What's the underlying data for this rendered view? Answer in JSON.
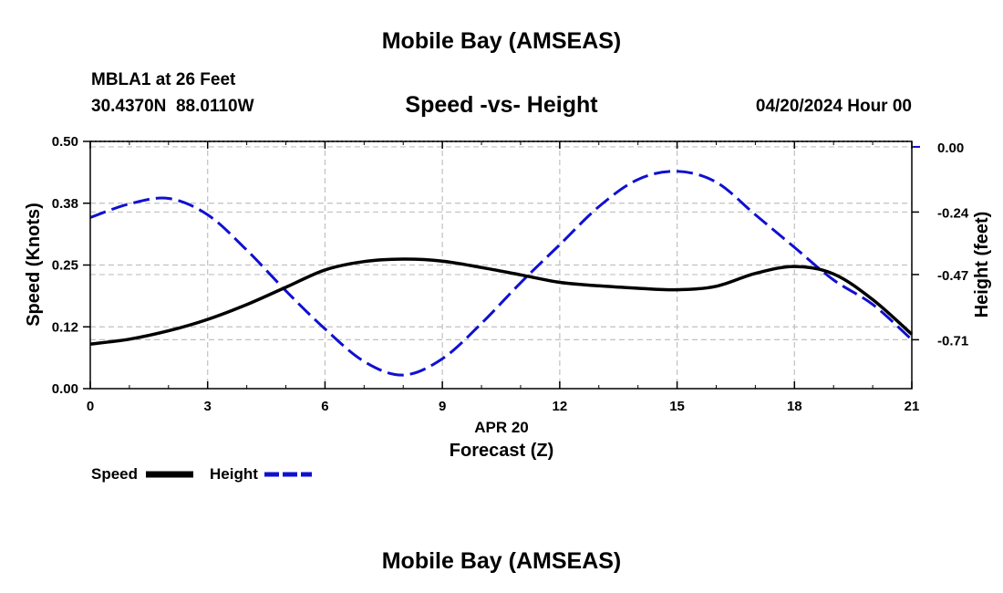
{
  "header": {
    "top_title": "Mobile Bay (AMSEAS)",
    "station_line": "MBLA1 at 26 Feet",
    "coords_line": "30.4370N  88.0110W",
    "timestamp": "04/20/2024 Hour 00"
  },
  "footer": {
    "bottom_title": "Mobile Bay (AMSEAS)"
  },
  "legend": {
    "speed_label": "Speed",
    "height_label": "Height"
  },
  "colors": {
    "speed": "#000000",
    "height": "#1010d0",
    "grid": "#c0c0c0"
  },
  "chart_data": {
    "type": "line",
    "title": "Speed -vs- Height",
    "xlabel": "Forecast (Z)",
    "xlabel_date": "APR 20",
    "ylabel": "Speed (Knots)",
    "y2label": "Height (feet)",
    "xlim": [
      0,
      21
    ],
    "ylim": [
      0,
      0.5
    ],
    "y2lim": [
      -0.89,
      0.02
    ],
    "xticks": [
      0,
      3,
      6,
      9,
      12,
      15,
      18,
      21
    ],
    "xtick_labels": [
      "0",
      "3",
      "6",
      "9",
      "12",
      "15",
      "18",
      "21"
    ],
    "yticks": [
      0.0,
      0.125,
      0.25,
      0.375,
      0.5
    ],
    "ytick_labels": [
      "0.00",
      "0.12",
      "0.25",
      "0.38",
      "0.50"
    ],
    "y2ticks": [
      0.0,
      -0.24,
      -0.47,
      -0.71
    ],
    "y2tick_labels": [
      "0.00",
      "-0.24",
      "-0.47",
      "-0.71"
    ],
    "grid": true,
    "legend_position": "bottom-left",
    "series": [
      {
        "name": "Speed",
        "axis": "left",
        "style": "solid",
        "x": [
          0,
          1,
          2,
          3,
          4,
          5,
          6,
          7,
          8,
          9,
          10,
          11,
          12,
          13,
          14,
          15,
          16,
          17,
          18,
          19,
          20,
          21
        ],
        "values": [
          0.09,
          0.1,
          0.117,
          0.14,
          0.17,
          0.205,
          0.24,
          0.257,
          0.262,
          0.258,
          0.245,
          0.23,
          0.215,
          0.208,
          0.203,
          0.2,
          0.207,
          0.233,
          0.247,
          0.232,
          0.18,
          0.11
        ]
      },
      {
        "name": "Height",
        "axis": "right",
        "style": "dashed",
        "x": [
          0,
          1,
          2,
          3,
          4,
          5,
          6,
          7,
          8,
          9,
          10,
          11,
          12,
          13,
          14,
          15,
          16,
          17,
          18,
          19,
          20,
          21
        ],
        "values": [
          -0.26,
          -0.21,
          -0.19,
          -0.25,
          -0.38,
          -0.53,
          -0.67,
          -0.79,
          -0.84,
          -0.78,
          -0.65,
          -0.5,
          -0.36,
          -0.22,
          -0.12,
          -0.09,
          -0.13,
          -0.25,
          -0.37,
          -0.49,
          -0.58,
          -0.71
        ]
      }
    ]
  }
}
